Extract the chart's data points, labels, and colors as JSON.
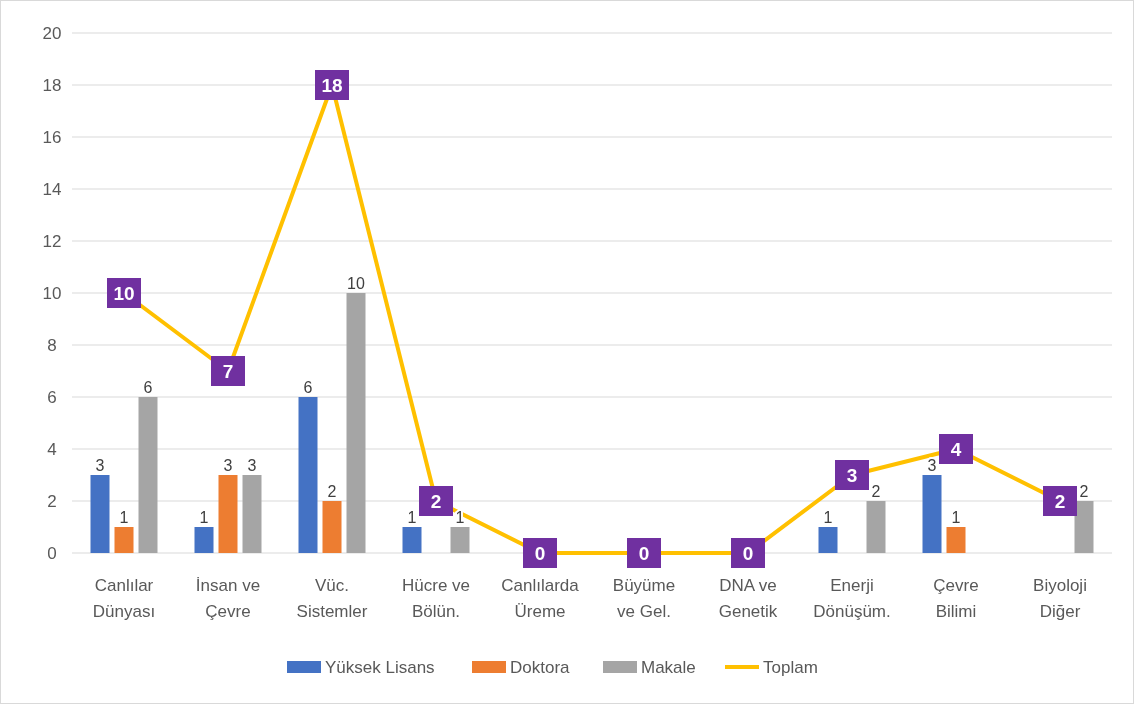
{
  "chart_data": {
    "type": "bar",
    "categories": [
      "Canlılar Dünyası",
      "İnsan ve Çevre",
      "Vüc. Sistemler",
      "Hücre ve Bölün.",
      "Canlılarda Üreme",
      "Büyüme ve Gel.",
      "DNA ve Genetik",
      "Enerji Dönüşüm.",
      "Çevre Bilimi",
      "Biyoloji Diğer"
    ],
    "series": [
      {
        "name": "Yüksek Lisans",
        "color": "#4472c4",
        "values": [
          3,
          1,
          6,
          1,
          null,
          null,
          null,
          1,
          3,
          null
        ]
      },
      {
        "name": "Doktora",
        "color": "#ed7d31",
        "values": [
          1,
          3,
          2,
          null,
          null,
          null,
          null,
          null,
          1,
          null
        ]
      },
      {
        "name": "Makale",
        "color": "#a5a5a5",
        "values": [
          6,
          3,
          10,
          1,
          null,
          null,
          null,
          2,
          null,
          2
        ]
      },
      {
        "name": "Toplam",
        "type": "line",
        "color": "#ffc000",
        "values": [
          10,
          7,
          18,
          2,
          0,
          0,
          0,
          3,
          4,
          2
        ]
      }
    ],
    "ylim": [
      0,
      20
    ],
    "yticks": [
      0,
      2,
      4,
      6,
      8,
      10,
      12,
      14,
      16,
      18,
      20
    ],
    "grid": "y",
    "legend": "bottom",
    "data_labels": true,
    "marker": "square",
    "line_style": "solid"
  }
}
